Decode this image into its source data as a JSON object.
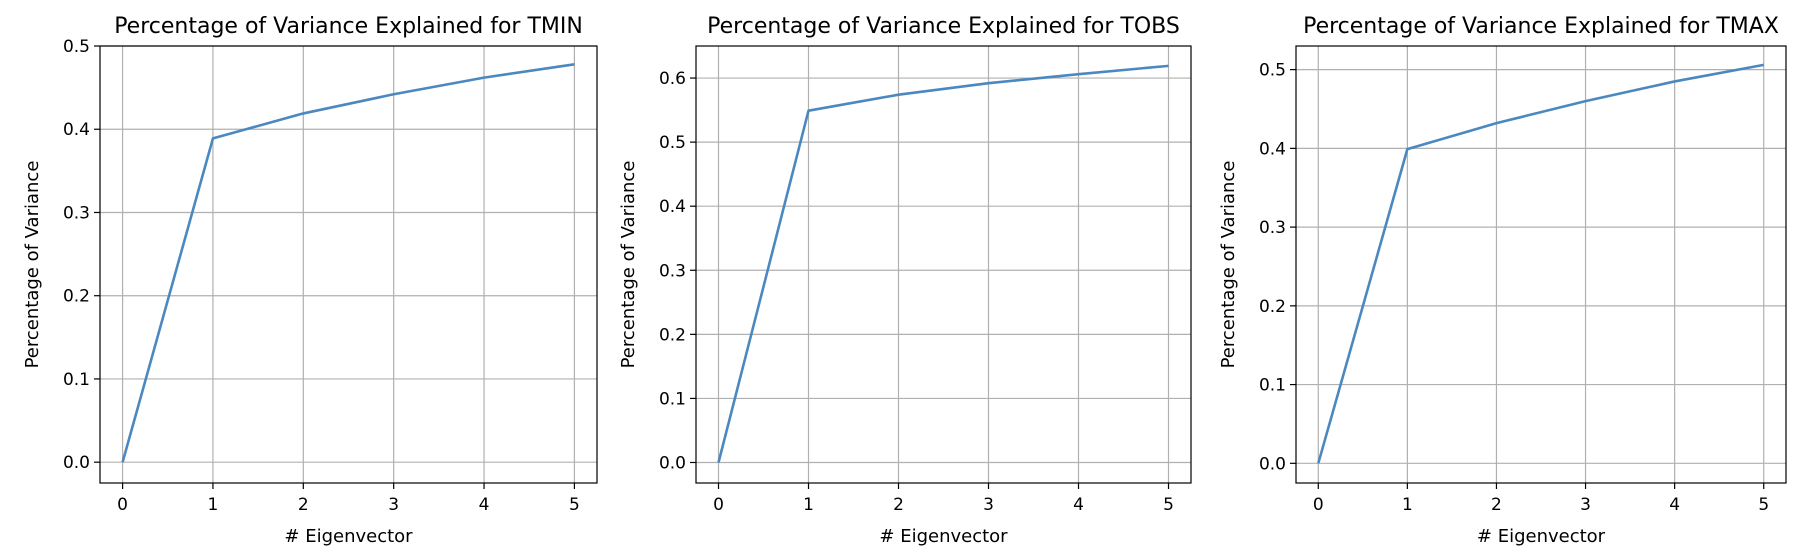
{
  "chart_data": [
    {
      "type": "line",
      "title": "Percentage of Variance Explained for TMIN",
      "xlabel": "# Eigenvector",
      "ylabel": "Percentage of Variance",
      "x": [
        0,
        1,
        2,
        3,
        4,
        5
      ],
      "xticks": [
        "0",
        "1",
        "2",
        "3",
        "4",
        "5"
      ],
      "yticks": [
        "0.0",
        "0.1",
        "0.2",
        "0.3",
        "0.4",
        "0.5"
      ],
      "xlim": [
        -0.25,
        5.25
      ],
      "ylim": [
        -0.025,
        0.5
      ],
      "grid": true,
      "color": "#4c88c0",
      "series": [
        {
          "values": [
            0.0,
            0.389,
            0.419,
            0.442,
            0.462,
            0.478
          ]
        }
      ]
    },
    {
      "type": "line",
      "title": "Percentage of Variance Explained for TOBS",
      "xlabel": "# Eigenvector",
      "ylabel": "Percentage of Variance",
      "x": [
        0,
        1,
        2,
        3,
        4,
        5
      ],
      "xticks": [
        "0",
        "1",
        "2",
        "3",
        "4",
        "5"
      ],
      "yticks": [
        "0.0",
        "0.1",
        "0.2",
        "0.3",
        "0.4",
        "0.5",
        "0.6"
      ],
      "xlim": [
        -0.25,
        5.25
      ],
      "ylim": [
        -0.032,
        0.65
      ],
      "grid": true,
      "color": "#4c88c0",
      "series": [
        {
          "values": [
            0.0,
            0.549,
            0.574,
            0.592,
            0.606,
            0.619
          ]
        }
      ]
    },
    {
      "type": "line",
      "title": "Percentage of Variance Explained for TMAX",
      "xlabel": "# Eigenvector",
      "ylabel": "Percentage of Variance",
      "x": [
        0,
        1,
        2,
        3,
        4,
        5
      ],
      "xticks": [
        "0",
        "1",
        "2",
        "3",
        "4",
        "5"
      ],
      "yticks": [
        "0.0",
        "0.1",
        "0.2",
        "0.3",
        "0.4",
        "0.5"
      ],
      "xlim": [
        -0.25,
        5.25
      ],
      "ylim": [
        -0.025,
        0.53
      ],
      "grid": true,
      "color": "#4c88c0",
      "series": [
        {
          "values": [
            0.0,
            0.399,
            0.432,
            0.46,
            0.485,
            0.506
          ]
        }
      ]
    }
  ]
}
